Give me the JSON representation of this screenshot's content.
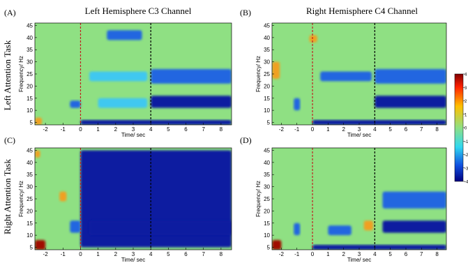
{
  "panels": [
    {
      "id": "A",
      "label": "(A)",
      "title": "Left Hemisphere C3 Channel"
    },
    {
      "id": "B",
      "label": "(B)",
      "title": "Right Hemisphere C4 Channel"
    },
    {
      "id": "C",
      "label": "(C)",
      "title": ""
    },
    {
      "id": "D",
      "label": "(D)",
      "title": ""
    }
  ],
  "row_labels": [
    "Left Attention Task",
    "Right Attention Task"
  ],
  "ylabel": "Frequency/ Hz",
  "xlabel": "Time/ sec",
  "x_ticks": [
    "-2",
    "-1",
    "0",
    "1",
    "2",
    "3",
    "4",
    "5",
    "6",
    "7",
    "8"
  ],
  "y_ticks": [
    "5",
    "10",
    "15",
    "20",
    "25",
    "30",
    "35",
    "40",
    "45"
  ],
  "colorbar_ticks": [
    "4",
    "3",
    "2",
    "1",
    "0",
    "-1",
    "-2",
    "-3",
    "-4"
  ],
  "colors": {
    "background": "#8fe083",
    "strong_neg": "#0a1ea0",
    "neg": "#2266e0",
    "weak_neg": "#3fc8f0",
    "pos": "#f0a020",
    "strong_pos": "#a01000",
    "marker_zero": "#c02020",
    "marker_four": "#000000"
  },
  "chart_data": {
    "type": "heatmap",
    "xlabel": "Time/ sec",
    "ylabel": "Frequency/ Hz",
    "xlim": [
      -2.6,
      8.6
    ],
    "ylim": [
      4,
      46
    ],
    "clim": [
      -4,
      4
    ],
    "event_markers": [
      {
        "time": 0,
        "color": "#c02020",
        "style": "dashed"
      },
      {
        "time": 4,
        "color": "#000000",
        "style": "dashed"
      }
    ],
    "panels": [
      {
        "panel": "A",
        "task": "Left Attention Task",
        "channel": "C3",
        "blobs": [
          {
            "t0": 4.0,
            "t1": 8.6,
            "f0": 11,
            "f1": 16,
            "value": -3.5
          },
          {
            "t0": 4.0,
            "t1": 8.6,
            "f0": 21,
            "f1": 27,
            "value": -2.5
          },
          {
            "t0": 0.0,
            "t1": 8.6,
            "f0": 4,
            "f1": 6,
            "value": -4
          },
          {
            "t0": 1.0,
            "t1": 3.8,
            "f0": 11,
            "f1": 15,
            "value": -1.5
          },
          {
            "t0": -0.6,
            "t1": 0.0,
            "f0": 11,
            "f1": 14,
            "value": -2.5
          },
          {
            "t0": 0.5,
            "t1": 3.8,
            "f0": 22,
            "f1": 26,
            "value": -1.2
          },
          {
            "t0": 1.5,
            "t1": 3.5,
            "f0": 39,
            "f1": 43,
            "value": -3
          },
          {
            "t0": -2.6,
            "t1": -2.2,
            "f0": 4,
            "f1": 7,
            "value": 2.5
          }
        ]
      },
      {
        "panel": "B",
        "task": "Left Attention Task",
        "channel": "C4",
        "blobs": [
          {
            "t0": 4.0,
            "t1": 8.6,
            "f0": 11,
            "f1": 16,
            "value": -3.5
          },
          {
            "t0": 4.0,
            "t1": 8.6,
            "f0": 21,
            "f1": 27,
            "value": -3
          },
          {
            "t0": 0.5,
            "t1": 3.8,
            "f0": 22,
            "f1": 26,
            "value": -2
          },
          {
            "t0": 0.0,
            "t1": 8.6,
            "f0": 4,
            "f1": 6,
            "value": -4
          },
          {
            "t0": -1.2,
            "t1": -0.8,
            "f0": 10,
            "f1": 15,
            "value": -3
          },
          {
            "t0": -2.6,
            "t1": -2.1,
            "f0": 23,
            "f1": 30,
            "value": 2
          },
          {
            "t0": -0.2,
            "t1": 0.3,
            "f0": 38,
            "f1": 41,
            "value": 3
          }
        ]
      },
      {
        "panel": "C",
        "task": "Right Attention Task",
        "channel": "C3",
        "blobs": [
          {
            "t0": 0.0,
            "t1": 8.6,
            "f0": 5,
            "f1": 45,
            "value": -3.5
          },
          {
            "t0": 0.5,
            "t1": 8.6,
            "f0": 10,
            "f1": 16,
            "value": -4
          },
          {
            "t0": -0.6,
            "t1": 0.0,
            "f0": 11,
            "f1": 16,
            "value": -3
          },
          {
            "t0": -2.6,
            "t1": -2.0,
            "f0": 4,
            "f1": 8,
            "value": 4
          },
          {
            "t0": -2.6,
            "t1": -2.3,
            "f0": 42,
            "f1": 45,
            "value": 3
          },
          {
            "t0": -1.2,
            "t1": -0.8,
            "f0": 24,
            "f1": 28,
            "value": 2
          }
        ]
      },
      {
        "panel": "D",
        "task": "Right Attention Task",
        "channel": "C4",
        "blobs": [
          {
            "t0": 4.5,
            "t1": 8.6,
            "f0": 11,
            "f1": 16,
            "value": -3.5
          },
          {
            "t0": 4.5,
            "t1": 8.6,
            "f0": 21,
            "f1": 28,
            "value": -3
          },
          {
            "t0": 0.0,
            "t1": 8.6,
            "f0": 4,
            "f1": 6,
            "value": -4
          },
          {
            "t0": -1.2,
            "t1": -0.8,
            "f0": 10,
            "f1": 15,
            "value": -3
          },
          {
            "t0": 1.0,
            "t1": 2.5,
            "f0": 10,
            "f1": 14,
            "value": -2.5
          },
          {
            "t0": 3.3,
            "t1": 3.9,
            "f0": 12,
            "f1": 16,
            "value": 2.5
          },
          {
            "t0": -2.6,
            "t1": -2.0,
            "f0": 4,
            "f1": 8,
            "value": 4
          }
        ]
      }
    ]
  }
}
